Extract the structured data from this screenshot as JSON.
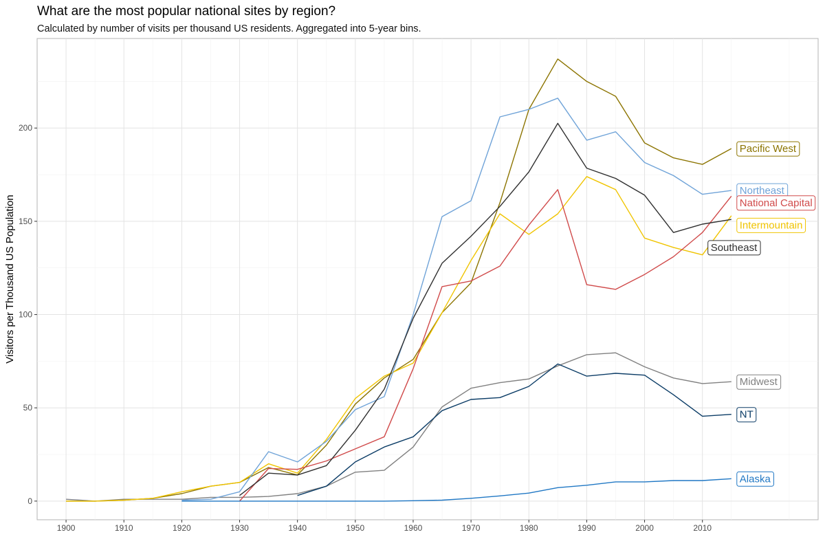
{
  "chart_data": {
    "type": "line",
    "title": "What are the most popular national sites by region?",
    "subtitle": "Calculated by number of visits per thousand US residents. Aggregated into 5-year bins.",
    "xlabel": "",
    "ylabel": "Visitors per Thousand US Population",
    "xlim": [
      1895,
      2030
    ],
    "ylim": [
      -10,
      248
    ],
    "x_ticks": [
      1900,
      1910,
      1920,
      1930,
      1940,
      1950,
      1960,
      1970,
      1980,
      1990,
      2000,
      2010
    ],
    "y_ticks": [
      0,
      50,
      100,
      150,
      200
    ],
    "grid": true,
    "legend": "direct labels at line ends",
    "series": [
      {
        "name": "Midwest",
        "color": "#808080",
        "points": [
          [
            1900,
            1
          ],
          [
            1905,
            0
          ],
          [
            1910,
            1
          ],
          [
            1915,
            1
          ],
          [
            1920,
            1
          ],
          [
            1925,
            2
          ],
          [
            1930,
            2
          ],
          [
            1935,
            2.5
          ],
          [
            1940,
            4
          ],
          [
            1945,
            8
          ],
          [
            1950,
            15.5
          ],
          [
            1955,
            16.5
          ],
          [
            1960,
            29
          ],
          [
            1965,
            50.5
          ],
          [
            1970,
            60.5
          ],
          [
            1975,
            63.5
          ],
          [
            1980,
            65.5
          ],
          [
            1985,
            72.5
          ],
          [
            1990,
            78.5
          ],
          [
            1995,
            79.5
          ],
          [
            2000,
            72
          ],
          [
            2005,
            66
          ],
          [
            2010,
            63
          ],
          [
            2015,
            64
          ]
        ],
        "label_year": 2015,
        "label_value": 64
      },
      {
        "name": "Pacific West",
        "color": "#8c7400",
        "points": [
          [
            1900,
            0
          ],
          [
            1905,
            0
          ],
          [
            1910,
            0.5
          ],
          [
            1915,
            1.5
          ],
          [
            1920,
            4
          ],
          [
            1925,
            8
          ],
          [
            1930,
            10
          ],
          [
            1935,
            18
          ],
          [
            1940,
            14
          ],
          [
            1945,
            30
          ],
          [
            1950,
            52
          ],
          [
            1955,
            66
          ],
          [
            1960,
            76
          ],
          [
            1965,
            101
          ],
          [
            1970,
            117
          ],
          [
            1975,
            160
          ],
          [
            1980,
            210
          ],
          [
            1985,
            237
          ],
          [
            1990,
            225
          ],
          [
            1995,
            217
          ],
          [
            2000,
            192
          ],
          [
            2005,
            184
          ],
          [
            2010,
            180.5
          ],
          [
            2015,
            189
          ]
        ],
        "label_year": 2015,
        "label_value": 189
      },
      {
        "name": "Intermountain",
        "color": "#f0c400",
        "points": [
          [
            1900,
            0
          ],
          [
            1905,
            0
          ],
          [
            1910,
            0.5
          ],
          [
            1915,
            1.5
          ],
          [
            1920,
            5
          ],
          [
            1925,
            8
          ],
          [
            1930,
            10
          ],
          [
            1935,
            20
          ],
          [
            1940,
            15
          ],
          [
            1945,
            33
          ],
          [
            1950,
            55
          ],
          [
            1955,
            67
          ],
          [
            1960,
            74
          ],
          [
            1965,
            101
          ],
          [
            1970,
            129
          ],
          [
            1975,
            154
          ],
          [
            1980,
            143
          ],
          [
            1985,
            154
          ],
          [
            1990,
            174
          ],
          [
            1995,
            167
          ],
          [
            2000,
            141
          ],
          [
            2005,
            136
          ],
          [
            2010,
            132
          ],
          [
            2015,
            153
          ]
        ],
        "label_year": 2015,
        "label_value": 148
      },
      {
        "name": "Northeast",
        "color": "#6fa3d8",
        "points": [
          [
            1920,
            0.5
          ],
          [
            1925,
            1
          ],
          [
            1930,
            5
          ],
          [
            1935,
            26.5
          ],
          [
            1940,
            21
          ],
          [
            1945,
            32
          ],
          [
            1950,
            49
          ],
          [
            1955,
            56
          ],
          [
            1960,
            100
          ],
          [
            1965,
            152.5
          ],
          [
            1970,
            161
          ],
          [
            1975,
            206
          ],
          [
            1980,
            210
          ],
          [
            1985,
            216
          ],
          [
            1990,
            193.5
          ],
          [
            1995,
            198
          ],
          [
            2000,
            181.5
          ],
          [
            2005,
            174.5
          ],
          [
            2010,
            164.5
          ],
          [
            2015,
            166.5
          ]
        ],
        "label_year": 2015,
        "label_value": 166.5
      },
      {
        "name": "National Capital",
        "color": "#d04a4a",
        "points": [
          [
            1930,
            0
          ],
          [
            1935,
            17.5
          ],
          [
            1940,
            17
          ],
          [
            1945,
            21.5
          ],
          [
            1950,
            28
          ],
          [
            1955,
            34.5
          ],
          [
            1960,
            71
          ],
          [
            1965,
            115
          ],
          [
            1970,
            118
          ],
          [
            1975,
            126
          ],
          [
            1980,
            148
          ],
          [
            1985,
            167
          ],
          [
            1990,
            116
          ],
          [
            1995,
            113.5
          ],
          [
            2000,
            121.5
          ],
          [
            2005,
            131
          ],
          [
            2010,
            144
          ],
          [
            2015,
            163.5
          ]
        ],
        "label_year": 2015,
        "label_value": 160
      },
      {
        "name": "Southeast",
        "color": "#303030",
        "points": [
          [
            1930,
            3
          ],
          [
            1935,
            15
          ],
          [
            1940,
            14
          ],
          [
            1945,
            19
          ],
          [
            1950,
            38
          ],
          [
            1955,
            60
          ],
          [
            1960,
            98
          ],
          [
            1965,
            127.5
          ],
          [
            1970,
            142
          ],
          [
            1975,
            158
          ],
          [
            1980,
            176.5
          ],
          [
            1985,
            202.5
          ],
          [
            1990,
            178.5
          ],
          [
            1995,
            173
          ],
          [
            2000,
            164
          ],
          [
            2005,
            144
          ],
          [
            2010,
            148.5
          ],
          [
            2015,
            151
          ]
        ],
        "label_year": 2010,
        "label_value": 136
      },
      {
        "name": "NT",
        "color": "#0b3c66",
        "points": [
          [
            1940,
            3
          ],
          [
            1945,
            8
          ],
          [
            1950,
            21
          ],
          [
            1955,
            29
          ],
          [
            1960,
            34.5
          ],
          [
            1965,
            48.5
          ],
          [
            1970,
            54.5
          ],
          [
            1975,
            55.5
          ],
          [
            1980,
            61.5
          ],
          [
            1985,
            73.5
          ],
          [
            1990,
            67
          ],
          [
            1995,
            68.5
          ],
          [
            2000,
            67.5
          ],
          [
            2005,
            57
          ],
          [
            2010,
            45.5
          ],
          [
            2015,
            46.5
          ]
        ],
        "label_year": 2015,
        "label_value": 46.5
      },
      {
        "name": "Alaska",
        "color": "#1f77c4",
        "points": [
          [
            1920,
            0
          ],
          [
            1925,
            0
          ],
          [
            1930,
            0
          ],
          [
            1935,
            0
          ],
          [
            1940,
            0
          ],
          [
            1945,
            0
          ],
          [
            1950,
            0
          ],
          [
            1955,
            0
          ],
          [
            1960,
            0.2
          ],
          [
            1965,
            0.5
          ],
          [
            1970,
            1.5
          ],
          [
            1975,
            2.8
          ],
          [
            1980,
            4.3
          ],
          [
            1985,
            7.2
          ],
          [
            1990,
            8.5
          ],
          [
            1995,
            10.3
          ],
          [
            2000,
            10.3
          ],
          [
            2005,
            11
          ],
          [
            2010,
            11
          ],
          [
            2015,
            12
          ]
        ],
        "label_year": 2015,
        "label_value": 12
      }
    ]
  }
}
